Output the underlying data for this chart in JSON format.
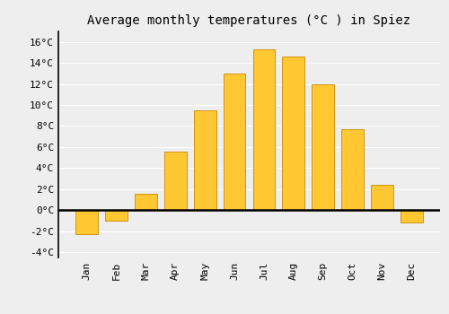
{
  "title": "Average monthly temperatures (°C ) in Spiez",
  "months": [
    "Jan",
    "Feb",
    "Mar",
    "Apr",
    "May",
    "Jun",
    "Jul",
    "Aug",
    "Sep",
    "Oct",
    "Nov",
    "Dec"
  ],
  "temperatures": [
    -2.3,
    -1.0,
    1.6,
    5.6,
    9.5,
    13.0,
    15.3,
    14.6,
    12.0,
    7.7,
    2.4,
    -1.2
  ],
  "bar_color": "#FFC832",
  "bar_edge_color": "#CC8800",
  "ylim": [
    -4.5,
    17
  ],
  "yticks": [
    -4,
    -2,
    0,
    2,
    4,
    6,
    8,
    10,
    12,
    14,
    16
  ],
  "ytick_labels": [
    "-4°C",
    "-2°C",
    "0°C",
    "2°C",
    "4°C",
    "6°C",
    "8°C",
    "10°C",
    "12°C",
    "14°C",
    "16°C"
  ],
  "bg_color": "#eeeeee",
  "title_fontsize": 10,
  "tick_fontsize": 8,
  "grid_color": "#ffffff",
  "zero_line_color": "#000000",
  "axis_line_color": "#000000"
}
